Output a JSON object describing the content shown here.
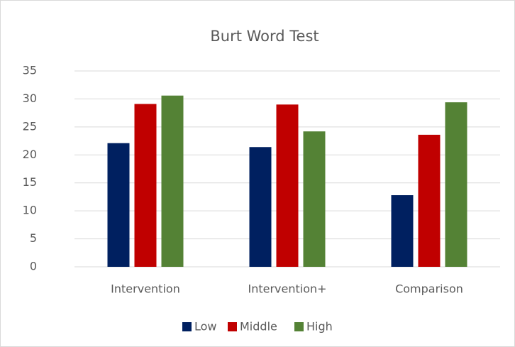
{
  "chart_data": {
    "type": "bar",
    "title": "Burt Word Test",
    "categories": [
      "Intervention",
      "Intervention+",
      "Comparison"
    ],
    "series": [
      {
        "name": "Low",
        "color": "#002060",
        "values": [
          22.1,
          21.4,
          12.8
        ]
      },
      {
        "name": "Middle",
        "color": "#c00000",
        "values": [
          29.1,
          29.0,
          23.6
        ]
      },
      {
        "name": "High",
        "color": "#548235",
        "values": [
          30.6,
          24.2,
          29.4
        ]
      }
    ],
    "ylim": [
      0,
      35
    ],
    "yticks": [
      0,
      5,
      10,
      15,
      20,
      25,
      30,
      35
    ],
    "grid": true,
    "legend": "bottom"
  }
}
